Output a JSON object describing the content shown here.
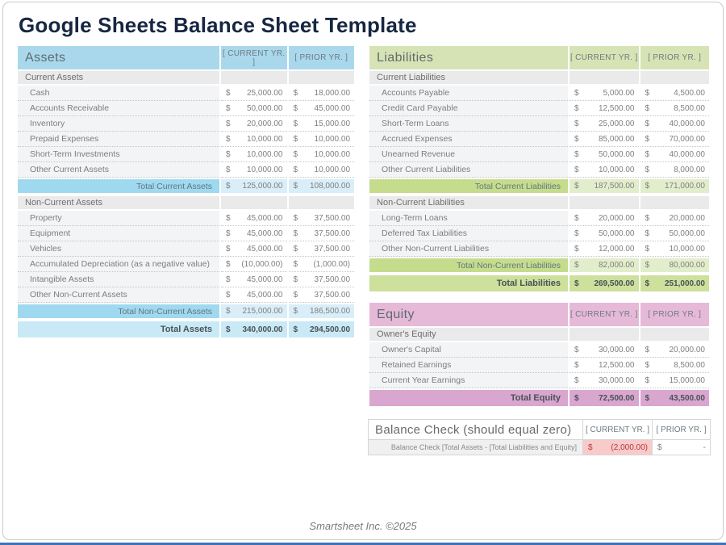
{
  "page": {
    "title": "Google Sheets Balance Sheet Template",
    "footer_credit": "Smartsheet Inc. ©2025"
  },
  "currency": "$",
  "columns": {
    "current": "[ CURRENT YR. ]",
    "prior": "[ PRIOR YR. ]"
  },
  "assets": {
    "title": "Assets",
    "sections": [
      {
        "label": "Current Assets",
        "rows": [
          {
            "label": "Cash",
            "current": "25,000.00",
            "prior": "18,000.00"
          },
          {
            "label": "Accounts Receivable",
            "current": "50,000.00",
            "prior": "45,000.00"
          },
          {
            "label": "Inventory",
            "current": "20,000.00",
            "prior": "15,000.00"
          },
          {
            "label": "Prepaid Expenses",
            "current": "10,000.00",
            "prior": "10,000.00"
          },
          {
            "label": "Short-Term Investments",
            "current": "10,000.00",
            "prior": "10,000.00"
          },
          {
            "label": "Other Current Assets",
            "current": "10,000.00",
            "prior": "10,000.00"
          }
        ],
        "total": {
          "label": "Total Current Assets",
          "current": "125,000.00",
          "prior": "108,000.00"
        }
      },
      {
        "label": "Non-Current Assets",
        "rows": [
          {
            "label": "Property",
            "current": "45,000.00",
            "prior": "37,500.00"
          },
          {
            "label": "Equipment",
            "current": "45,000.00",
            "prior": "37,500.00"
          },
          {
            "label": "Vehicles",
            "current": "45,000.00",
            "prior": "37,500.00"
          },
          {
            "label": "Accumulated Depreciation (as a negative value)",
            "current": "(10,000.00)",
            "prior": "(1,000.00)"
          },
          {
            "label": "Intangible Assets",
            "current": "45,000.00",
            "prior": "37,500.00"
          },
          {
            "label": "Other Non-Current Assets",
            "current": "45,000.00",
            "prior": "37,500.00"
          }
        ],
        "total": {
          "label": "Total Non-Current Assets",
          "current": "215,000.00",
          "prior": "186,500.00"
        }
      }
    ],
    "grand_total": {
      "label": "Total Assets",
      "current": "340,000.00",
      "prior": "294,500.00"
    }
  },
  "liabilities": {
    "title": "Liabilities",
    "sections": [
      {
        "label": "Current Liabilities",
        "rows": [
          {
            "label": "Accounts Payable",
            "current": "5,000.00",
            "prior": "4,500.00"
          },
          {
            "label": "Credit Card Payable",
            "current": "12,500.00",
            "prior": "8,500.00"
          },
          {
            "label": "Short-Term Loans",
            "current": "25,000.00",
            "prior": "40,000.00"
          },
          {
            "label": "Accrued Expenses",
            "current": "85,000.00",
            "prior": "70,000.00"
          },
          {
            "label": "Unearned Revenue",
            "current": "50,000.00",
            "prior": "40,000.00"
          },
          {
            "label": "Other Current Liabilities",
            "current": "10,000.00",
            "prior": "8,000.00"
          }
        ],
        "total": {
          "label": "Total Current Liabilities",
          "current": "187,500.00",
          "prior": "171,000.00"
        }
      },
      {
        "label": "Non-Current Liabilities",
        "rows": [
          {
            "label": "Long-Term Loans",
            "current": "20,000.00",
            "prior": "20,000.00"
          },
          {
            "label": "Deferred Tax Liabilities",
            "current": "50,000.00",
            "prior": "50,000.00"
          },
          {
            "label": "Other Non-Current Liabilities",
            "current": "12,000.00",
            "prior": "10,000.00"
          }
        ],
        "total": {
          "label": "Total Non-Current Liabilities",
          "current": "82,000.00",
          "prior": "80,000.00"
        }
      }
    ],
    "grand_total": {
      "label": "Total Liabilities",
      "current": "269,500.00",
      "prior": "251,000.00"
    }
  },
  "equity": {
    "title": "Equity",
    "sections": [
      {
        "label": "Owner's Equity",
        "rows": [
          {
            "label": "Owner's Capital",
            "current": "30,000.00",
            "prior": "20,000.00"
          },
          {
            "label": "Retained Earnings",
            "current": "12,500.00",
            "prior": "8,500.00"
          },
          {
            "label": "Current Year Earnings",
            "current": "30,000.00",
            "prior": "15,000.00"
          }
        ],
        "total": null
      }
    ],
    "grand_total": {
      "label": "Total Equity",
      "current": "72,500.00",
      "prior": "43,500.00"
    }
  },
  "balance_check": {
    "title": "Balance Check (should equal zero)",
    "row": {
      "label": "Balance Check [Total Assets - [Total Liabilities and Equity]",
      "current": "(2,000.00)",
      "prior": "-"
    }
  },
  "colors": {
    "title_color": "#172642",
    "bottom_bar": "#3e74b9",
    "section_bg": "#eaeaea",
    "assets_header": "#a9d8ec",
    "assets_total_label": "#9fd9f0",
    "assets_total_value": "#d9eef8",
    "assets_grand": "#c9e9f6",
    "liabilities_header": "#d6e4b5",
    "liabilities_total_label": "#c5dc8d",
    "liabilities_total_value": "#e2edcb",
    "liabilities_grand": "#cde09c",
    "equity_header": "#e6b9d8",
    "equity_total_label": "#d8a6ce",
    "equity_total_value": "#eed2e5",
    "equity_grand": "#d8a6ce",
    "balance_check_alert_bg": "#f8caca",
    "balance_check_alert_text": "#b23b3b"
  }
}
